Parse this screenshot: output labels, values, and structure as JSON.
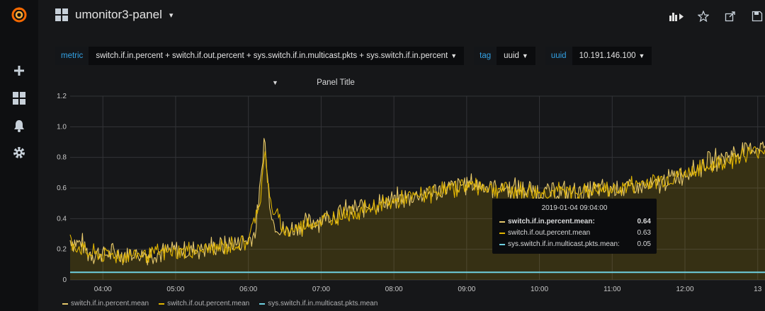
{
  "topbar": {
    "dashboard_title": "umonitor3-panel",
    "dashboard_caret": "▾"
  },
  "variables": [
    {
      "label": "metric",
      "value": "switch.if.in.percent + switch.if.out.percent + sys.switch.if.in.multicast.pkts + sys.switch.if.in.percent"
    },
    {
      "label": "tag",
      "value": "uuid"
    },
    {
      "label": "uuid",
      "value": "10.191.146.100"
    }
  ],
  "panel": {
    "title": "Panel Title"
  },
  "colors": {
    "in": "#e5c86b",
    "out": "#e0b400",
    "multicast": "#6ed0e0",
    "grid": "#333438",
    "fill": "rgba(224,180,0,0.16)",
    "tooltip_bg": "#0b0c0e"
  },
  "tooltip": {
    "time": "2019-01-04 09:04:00",
    "rows": [
      {
        "name": "switch.if.in.percent.mean:",
        "value": "0.64"
      },
      {
        "name": "switch.if.out.percent.mean",
        "value": "0.63"
      },
      {
        "name": "sys.switch.if.in.multicast.pkts.mean:",
        "value": "0.05"
      }
    ]
  },
  "legend": [
    {
      "name": "switch.if.in.percent.mean",
      "color": "#e5c86b"
    },
    {
      "name": "switch.if.out.percent.mean",
      "color": "#e0b400"
    },
    {
      "name": "sys.switch.if.in.multicast.pkts.mean",
      "color": "#6ed0e0"
    }
  ],
  "chart_data": {
    "type": "line",
    "y_ticks": [
      "0",
      "0.2",
      "0.4",
      "0.6",
      "0.8",
      "1.0",
      "1.2"
    ],
    "ylim": [
      0,
      1.2
    ],
    "x_ticks": [
      "04:00",
      "05:00",
      "06:00",
      "07:00",
      "08:00",
      "09:00",
      "10:00",
      "11:00",
      "12:00",
      "13"
    ],
    "x_tick_hours": [
      4,
      5,
      6,
      7,
      8,
      9,
      10,
      11,
      12,
      13
    ],
    "xlim_hours": [
      3.55,
      13.1
    ],
    "grid": true,
    "legend_position": "bottom-left",
    "series": [
      {
        "name": "switch.if.in.percent.mean",
        "points": [
          [
            3.55,
            0.26
          ],
          [
            3.7,
            0.24
          ],
          [
            3.8,
            0.18
          ],
          [
            4.0,
            0.17
          ],
          [
            4.3,
            0.17
          ],
          [
            4.6,
            0.17
          ],
          [
            5.0,
            0.19
          ],
          [
            5.3,
            0.2
          ],
          [
            5.6,
            0.22
          ],
          [
            5.9,
            0.24
          ],
          [
            6.05,
            0.28
          ],
          [
            6.1,
            0.32
          ],
          [
            6.17,
            0.62
          ],
          [
            6.22,
            0.95
          ],
          [
            6.28,
            0.55
          ],
          [
            6.35,
            0.36
          ],
          [
            6.5,
            0.32
          ],
          [
            7.0,
            0.4
          ],
          [
            7.5,
            0.47
          ],
          [
            8.0,
            0.52
          ],
          [
            8.5,
            0.57
          ],
          [
            9.0,
            0.63
          ],
          [
            9.5,
            0.6
          ],
          [
            10.0,
            0.58
          ],
          [
            10.5,
            0.57
          ],
          [
            11.0,
            0.6
          ],
          [
            11.5,
            0.6
          ],
          [
            12.0,
            0.7
          ],
          [
            12.5,
            0.8
          ],
          [
            13.0,
            0.87
          ],
          [
            13.1,
            0.88
          ]
        ]
      },
      {
        "name": "switch.if.out.percent.mean",
        "points": [
          [
            3.55,
            0.25
          ],
          [
            3.8,
            0.17
          ],
          [
            4.3,
            0.16
          ],
          [
            5.0,
            0.18
          ],
          [
            5.6,
            0.21
          ],
          [
            6.0,
            0.25
          ],
          [
            6.17,
            0.55
          ],
          [
            6.22,
            0.85
          ],
          [
            6.3,
            0.5
          ],
          [
            6.5,
            0.31
          ],
          [
            7.0,
            0.39
          ],
          [
            8.0,
            0.51
          ],
          [
            9.0,
            0.62
          ],
          [
            10.0,
            0.57
          ],
          [
            11.0,
            0.59
          ],
          [
            12.0,
            0.69
          ],
          [
            13.1,
            0.86
          ]
        ]
      },
      {
        "name": "sys.switch.if.in.multicast.pkts.mean",
        "points": [
          [
            3.55,
            0.05
          ],
          [
            13.1,
            0.05
          ]
        ]
      }
    ]
  }
}
